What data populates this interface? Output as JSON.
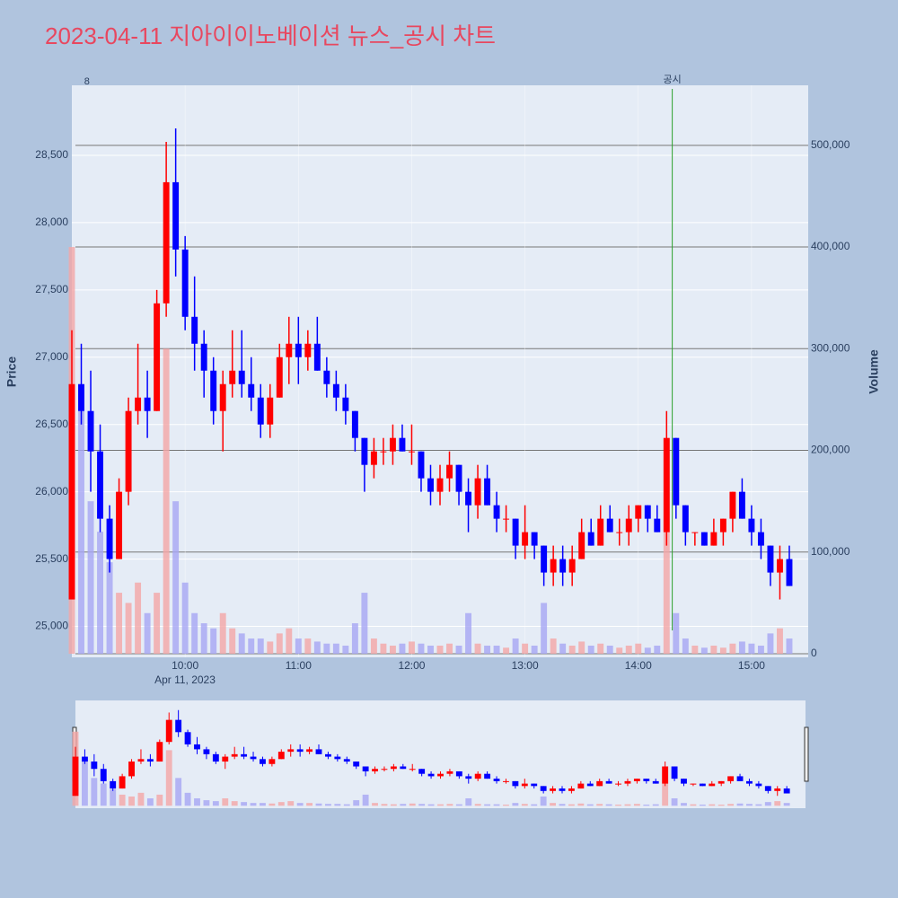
{
  "chart_data": {
    "type": "candlestick",
    "title": "2023-04-11 지아이이노베이션 뉴스_공시 차트",
    "y_label": "Price",
    "y2_label": "Volume",
    "x_date_label": "Apr 11, 2023",
    "x": [
      "09:00",
      "09:05",
      "09:10",
      "09:15",
      "09:20",
      "09:25",
      "09:30",
      "09:35",
      "09:40",
      "09:45",
      "09:50",
      "09:55",
      "10:00",
      "10:05",
      "10:10",
      "10:15",
      "10:20",
      "10:25",
      "10:30",
      "10:35",
      "10:40",
      "10:45",
      "10:50",
      "10:55",
      "11:00",
      "11:05",
      "11:10",
      "11:15",
      "11:20",
      "11:25",
      "11:30",
      "11:35",
      "11:40",
      "11:45",
      "11:50",
      "11:55",
      "12:00",
      "12:05",
      "12:10",
      "12:15",
      "12:20",
      "12:25",
      "12:30",
      "12:35",
      "12:40",
      "12:45",
      "12:50",
      "12:55",
      "13:00",
      "13:05",
      "13:10",
      "13:15",
      "13:20",
      "13:25",
      "13:30",
      "13:35",
      "13:40",
      "13:45",
      "13:50",
      "13:55",
      "14:00",
      "14:05",
      "14:10",
      "14:15",
      "14:20",
      "14:25",
      "14:30",
      "14:35",
      "14:40",
      "14:45",
      "14:50",
      "14:55",
      "15:00",
      "15:05",
      "15:10",
      "15:15",
      "15:20"
    ],
    "open": [
      25200,
      26800,
      26600,
      26300,
      25800,
      25500,
      26000,
      26600,
      26700,
      26600,
      27400,
      28300,
      27800,
      27300,
      27100,
      26900,
      26600,
      26800,
      26900,
      26800,
      26700,
      26500,
      26700,
      27000,
      27100,
      27000,
      27100,
      26900,
      26800,
      26700,
      26600,
      26400,
      26200,
      26300,
      26300,
      26400,
      26300,
      26300,
      26100,
      26000,
      26100,
      26200,
      26000,
      25900,
      26100,
      25900,
      25800,
      25800,
      25600,
      25700,
      25600,
      25400,
      25500,
      25400,
      25500,
      25700,
      25600,
      25800,
      25700,
      25700,
      25800,
      25900,
      25800,
      25700,
      26400,
      25900,
      25700,
      25700,
      25600,
      25700,
      25800,
      26000,
      25800,
      25700,
      25600,
      25400,
      25500
    ],
    "high": [
      27200,
      27100,
      26900,
      26500,
      25900,
      26100,
      26700,
      27100,
      26900,
      27500,
      28600,
      28700,
      27900,
      27600,
      27200,
      27000,
      26900,
      27200,
      27200,
      27000,
      26800,
      26800,
      27100,
      27300,
      27300,
      27200,
      27300,
      27000,
      26900,
      26800,
      26600,
      26400,
      26400,
      26400,
      26500,
      26500,
      26500,
      26300,
      26200,
      26200,
      26300,
      26200,
      26100,
      26200,
      26200,
      26000,
      25900,
      25800,
      25900,
      25700,
      25600,
      25600,
      25600,
      25600,
      25800,
      25800,
      25900,
      25900,
      25800,
      25900,
      25900,
      25900,
      25900,
      26600,
      26400,
      25900,
      25700,
      25700,
      25800,
      25800,
      26000,
      26100,
      25900,
      25800,
      25600,
      25600,
      25600
    ],
    "low": [
      25200,
      26500,
      26000,
      25700,
      25400,
      25500,
      25900,
      26500,
      26400,
      26600,
      27300,
      27600,
      27200,
      26900,
      26700,
      26500,
      26300,
      26700,
      26700,
      26600,
      26400,
      26400,
      26700,
      26800,
      26800,
      26900,
      26900,
      26700,
      26600,
      26500,
      26300,
      26000,
      26100,
      26200,
      26200,
      26300,
      26200,
      26000,
      25900,
      25900,
      26000,
      25900,
      25700,
      25800,
      25900,
      25700,
      25700,
      25500,
      25500,
      25500,
      25300,
      25300,
      25300,
      25300,
      25500,
      25600,
      25600,
      25700,
      25600,
      25600,
      25700,
      25700,
      25700,
      25600,
      25800,
      25600,
      25600,
      25600,
      25600,
      25600,
      25700,
      25800,
      25600,
      25500,
      25300,
      25200,
      25300
    ],
    "close": [
      26800,
      26600,
      26300,
      25800,
      25500,
      26000,
      26600,
      26700,
      26600,
      27400,
      28300,
      27800,
      27300,
      27100,
      26900,
      26600,
      26800,
      26900,
      26800,
      26700,
      26500,
      26700,
      27000,
      27100,
      27000,
      27100,
      26900,
      26800,
      26700,
      26600,
      26400,
      26200,
      26300,
      26300,
      26400,
      26300,
      26300,
      26100,
      26000,
      26100,
      26200,
      26000,
      25900,
      26100,
      25900,
      25800,
      25800,
      25600,
      25700,
      25600,
      25400,
      25500,
      25400,
      25500,
      25700,
      25600,
      25800,
      25700,
      25700,
      25800,
      25900,
      25800,
      25700,
      26400,
      25900,
      25700,
      25700,
      25600,
      25700,
      25800,
      26000,
      25800,
      25700,
      25600,
      25400,
      25500,
      25300
    ],
    "volume": [
      400000,
      260000,
      150000,
      120000,
      90000,
      60000,
      50000,
      70000,
      40000,
      60000,
      300000,
      150000,
      70000,
      40000,
      30000,
      25000,
      40000,
      25000,
      20000,
      15000,
      15000,
      12000,
      20000,
      25000,
      15000,
      15000,
      12000,
      10000,
      10000,
      8000,
      30000,
      60000,
      15000,
      10000,
      8000,
      10000,
      12000,
      10000,
      8000,
      8000,
      10000,
      8000,
      40000,
      10000,
      8000,
      8000,
      6000,
      15000,
      10000,
      8000,
      50000,
      15000,
      10000,
      8000,
      12000,
      8000,
      10000,
      8000,
      6000,
      8000,
      10000,
      6000,
      8000,
      120000,
      40000,
      15000,
      8000,
      6000,
      8000,
      6000,
      10000,
      12000,
      10000,
      8000,
      20000,
      25000,
      15000
    ],
    "increasing_color": "#ff0000",
    "decreasing_color": "#0000ff",
    "increasing_volume_color": "#f4a6a6",
    "decreasing_volume_color": "#a6a6f4",
    "xlim": [
      "09:00",
      "15:30"
    ],
    "xticks": [
      "10:00",
      "11:00",
      "12:00",
      "13:00",
      "14:00",
      "15:00"
    ],
    "ylim": [
      24770,
      29020
    ],
    "yticks": [
      {
        "value": 25000,
        "label": "25,000"
      },
      {
        "value": 25500,
        "label": "25,500"
      },
      {
        "value": 26000,
        "label": "26,000"
      },
      {
        "value": 26500,
        "label": "26,500"
      },
      {
        "value": 27000,
        "label": "27,000"
      },
      {
        "value": 27500,
        "label": "27,500"
      },
      {
        "value": 28000,
        "label": "28,000"
      },
      {
        "value": 28500,
        "label": "28,500"
      }
    ],
    "y2lim": [
      -3500,
      559000
    ],
    "y2ticks": [
      0,
      {
        "value": 100000,
        "label": "100,000"
      },
      {
        "value": 200000,
        "label": "200,000"
      },
      {
        "value": 300000,
        "label": "300,000"
      },
      {
        "value": 400000,
        "label": "400,000"
      },
      {
        "value": 500000,
        "label": "500,000"
      }
    ],
    "grid": true,
    "annotations": [
      {
        "x": "09:08",
        "text": "8"
      },
      {
        "x": "14:18",
        "text": "공시",
        "line_color": "#2ca02c"
      }
    ],
    "range_slider": true
  }
}
